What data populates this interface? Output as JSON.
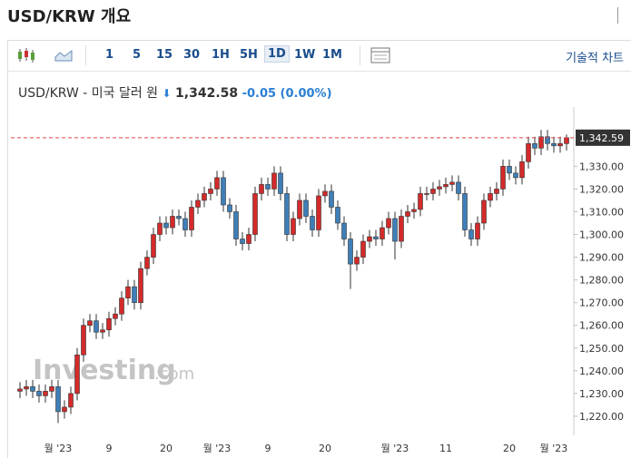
{
  "header": {
    "title": "USD/KRW 개요",
    "intervals": [
      "1",
      "5",
      "15",
      "30",
      "1H",
      "5H",
      "1D",
      "1W",
      "1M"
    ],
    "selected_interval": "1D",
    "tech_chart": "기술적 차트",
    "instrument": "USD/KRW - 미국 달러 원",
    "price": "1,342.58",
    "change": "-0.05",
    "change_pct": "(0.00%)"
  },
  "chart_data": {
    "type": "candlestick",
    "watermark": "Investing",
    "watermark_suffix": ".com",
    "up_color": "#d42a2a",
    "down_color": "#3f7fb8",
    "grid": false,
    "ylim": [
      1211.6,
      1352.1
    ],
    "yticks": [
      {
        "value": 1220,
        "label": "1,220.00"
      },
      {
        "value": 1230,
        "label": "1,230.00"
      },
      {
        "value": 1240,
        "label": "1,240.00"
      },
      {
        "value": 1250,
        "label": "1,250.00"
      },
      {
        "value": 1260,
        "label": "1,260.00"
      },
      {
        "value": 1270,
        "label": "1,270.00"
      },
      {
        "value": 1280,
        "label": "1,280.00"
      },
      {
        "value": 1290,
        "label": "1,290.00"
      },
      {
        "value": 1300,
        "label": "1,300.00"
      },
      {
        "value": 1310,
        "label": "1,310.00"
      },
      {
        "value": 1320,
        "label": "1,320.00"
      },
      {
        "value": 1330,
        "label": "1,330.00"
      }
    ],
    "last_price": {
      "value": 1342.59,
      "label": "1,342.59"
    },
    "categories": [
      null,
      null,
      null,
      null,
      null,
      null,
      "월 '23",
      null,
      null,
      null,
      null,
      null,
      null,
      null,
      "9",
      null,
      null,
      null,
      null,
      null,
      null,
      null,
      null,
      "20",
      null,
      null,
      null,
      null,
      null,
      null,
      null,
      "월 '23",
      null,
      null,
      null,
      null,
      null,
      null,
      null,
      "9",
      null,
      null,
      null,
      null,
      null,
      null,
      null,
      null,
      "20",
      null,
      null,
      null,
      null,
      null,
      null,
      null,
      null,
      null,
      null,
      "월 '23",
      null,
      null,
      null,
      null,
      null,
      null,
      null,
      "11",
      null,
      null,
      null,
      null,
      null,
      null,
      null,
      null,
      null,
      "20",
      null,
      null,
      null,
      null,
      null,
      null,
      "월 '23",
      null,
      null
    ],
    "open": [
      1231,
      1232,
      1233,
      1231,
      1229,
      1231,
      1233,
      1222,
      1224,
      1230,
      1247,
      1260,
      1262,
      1257,
      1258,
      1263,
      1265,
      1272,
      1277,
      1270,
      1285,
      1290,
      1300,
      1305,
      1303,
      1308,
      1307,
      1302,
      1312,
      1315,
      1318,
      1320,
      1325,
      1313,
      1310,
      1298,
      1296,
      1300,
      1318,
      1322,
      1320,
      1327,
      1318,
      1300,
      1307,
      1315,
      1308,
      1302,
      1317,
      1319,
      1312,
      1305,
      1298,
      1287,
      1290,
      1297,
      1299,
      1298,
      1303,
      1307,
      1297,
      1308,
      1310,
      1311,
      1318,
      1318,
      1320,
      1321,
      1322,
      1323,
      1318,
      1302,
      1298,
      1305,
      1315,
      1318,
      1320,
      1330,
      1327,
      1325,
      1332,
      1340,
      1338,
      1343,
      1340,
      1339,
      1340
    ],
    "high": [
      1235,
      1236,
      1236,
      1234,
      1234,
      1236,
      1236,
      1227,
      1233,
      1250,
      1263,
      1265,
      1265,
      1261,
      1266,
      1268,
      1275,
      1280,
      1280,
      1288,
      1293,
      1303,
      1308,
      1308,
      1311,
      1311,
      1310,
      1315,
      1318,
      1321,
      1323,
      1328,
      1328,
      1316,
      1313,
      1301,
      1303,
      1321,
      1325,
      1325,
      1330,
      1330,
      1321,
      1310,
      1318,
      1318,
      1311,
      1320,
      1322,
      1322,
      1315,
      1308,
      1301,
      1293,
      1300,
      1302,
      1302,
      1306,
      1310,
      1310,
      1311,
      1313,
      1314,
      1321,
      1321,
      1323,
      1324,
      1325,
      1326,
      1326,
      1321,
      1305,
      1308,
      1318,
      1321,
      1323,
      1333,
      1333,
      1330,
      1335,
      1343,
      1343,
      1346,
      1346,
      1343,
      1343,
      1344
    ],
    "low": [
      1228,
      1229,
      1228,
      1226,
      1226,
      1228,
      1217,
      1219,
      1221,
      1227,
      1244,
      1257,
      1254,
      1254,
      1255,
      1260,
      1262,
      1269,
      1267,
      1267,
      1282,
      1287,
      1297,
      1300,
      1300,
      1304,
      1299,
      1299,
      1309,
      1312,
      1315,
      1317,
      1310,
      1307,
      1295,
      1293,
      1293,
      1297,
      1315,
      1317,
      1317,
      1315,
      1297,
      1297,
      1304,
      1305,
      1299,
      1299,
      1314,
      1309,
      1302,
      1295,
      1276,
      1284,
      1287,
      1294,
      1295,
      1295,
      1300,
      1289,
      1294,
      1305,
      1307,
      1308,
      1315,
      1315,
      1317,
      1318,
      1319,
      1315,
      1299,
      1295,
      1295,
      1302,
      1312,
      1315,
      1317,
      1324,
      1322,
      1322,
      1329,
      1335,
      1335,
      1337,
      1336,
      1336,
      1337
    ],
    "close": [
      1232,
      1233,
      1231,
      1229,
      1231,
      1233,
      1222,
      1224,
      1230,
      1247,
      1260,
      1262,
      1257,
      1258,
      1263,
      1265,
      1272,
      1277,
      1270,
      1285,
      1290,
      1300,
      1305,
      1303,
      1308,
      1307,
      1302,
      1312,
      1315,
      1318,
      1320,
      1325,
      1313,
      1310,
      1298,
      1296,
      1300,
      1318,
      1322,
      1320,
      1327,
      1318,
      1300,
      1307,
      1315,
      1308,
      1302,
      1317,
      1319,
      1312,
      1305,
      1298,
      1287,
      1290,
      1297,
      1299,
      1298,
      1303,
      1307,
      1297,
      1308,
      1310,
      1311,
      1318,
      1318,
      1320,
      1321,
      1322,
      1323,
      1318,
      1302,
      1298,
      1305,
      1315,
      1318,
      1320,
      1330,
      1327,
      1325,
      1332,
      1340,
      1338,
      1343,
      1340,
      1339,
      1340,
      1342.58
    ]
  }
}
